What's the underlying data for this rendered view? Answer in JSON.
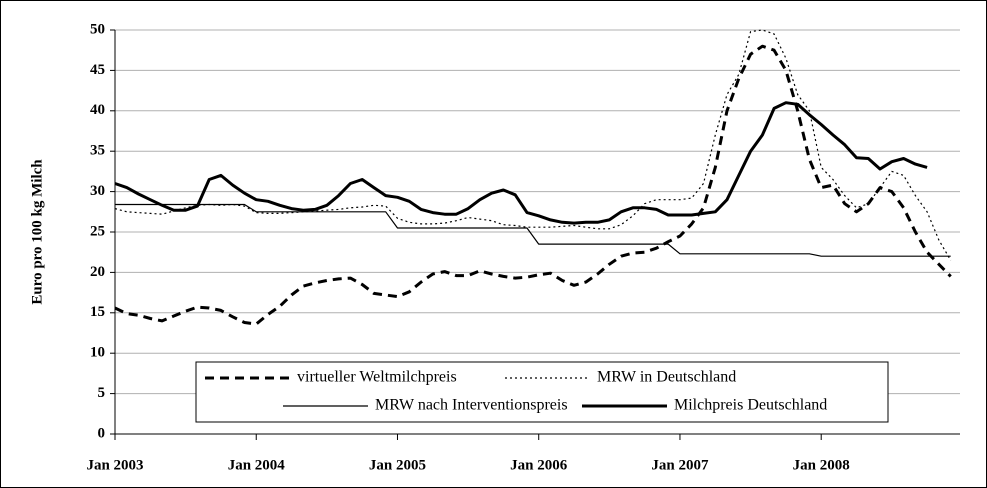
{
  "chart_data": {
    "type": "line",
    "y_label": "Euro pro 100 kg Milch",
    "categories": [
      "Jan 2003",
      null,
      null,
      null,
      null,
      null,
      null,
      null,
      null,
      null,
      null,
      null,
      "Jan 2004",
      null,
      null,
      null,
      null,
      null,
      null,
      null,
      null,
      null,
      null,
      null,
      "Jan 2005",
      null,
      null,
      null,
      null,
      null,
      null,
      null,
      null,
      null,
      null,
      null,
      "Jan 2006",
      null,
      null,
      null,
      null,
      null,
      null,
      null,
      null,
      null,
      null,
      null,
      "Jan 2007",
      null,
      null,
      null,
      null,
      null,
      null,
      null,
      null,
      null,
      null,
      null,
      "Jan 2008",
      null,
      null,
      null,
      null,
      null,
      null,
      null,
      null,
      null,
      null,
      null
    ],
    "ylim": [
      0,
      50
    ],
    "yticks": [
      0,
      5,
      10,
      15,
      20,
      25,
      30,
      35,
      40,
      45,
      50
    ],
    "grid": true,
    "series": [
      {
        "name": "virtueller Weltmilchpreis",
        "color": "#000000",
        "dash": "dashed",
        "weight": "thick",
        "values": [
          15.6,
          14.9,
          14.7,
          14.3,
          14.0,
          14.6,
          15.2,
          15.7,
          15.6,
          15.3,
          14.5,
          13.8,
          13.6,
          14.8,
          15.8,
          17.2,
          18.3,
          18.7,
          19.0,
          19.2,
          19.3,
          18.5,
          17.4,
          17.2,
          17.0,
          17.6,
          18.8,
          19.8,
          20.1,
          19.6,
          19.6,
          20.2,
          19.8,
          19.5,
          19.3,
          19.4,
          19.7,
          19.9,
          19.0,
          18.4,
          18.8,
          19.8,
          21.0,
          22.0,
          22.4,
          22.5,
          23.0,
          23.8,
          24.5,
          26.0,
          28.0,
          33.0,
          40.0,
          44.0,
          47.0,
          48.0,
          47.5,
          45.0,
          40.0,
          34.0,
          30.5,
          30.8,
          28.5,
          27.5,
          28.5,
          30.5,
          30.0,
          28.0,
          25.0,
          22.5,
          21.0,
          19.5
        ]
      },
      {
        "name": "MRW in Deutschland",
        "color": "#000000",
        "dash": "dotted",
        "weight": "thin",
        "values": [
          27.9,
          27.5,
          27.4,
          27.3,
          27.2,
          27.6,
          28.0,
          28.3,
          28.4,
          28.3,
          28.4,
          28.2,
          27.4,
          27.3,
          27.3,
          27.4,
          27.5,
          27.6,
          27.7,
          27.8,
          28.0,
          28.1,
          28.3,
          28.2,
          26.7,
          26.2,
          26.0,
          26.0,
          26.1,
          26.4,
          26.8,
          26.6,
          26.4,
          25.9,
          25.8,
          25.6,
          25.6,
          25.6,
          25.7,
          25.8,
          25.6,
          25.4,
          25.4,
          25.9,
          27.0,
          28.5,
          29.0,
          29.0,
          29.0,
          29.2,
          31.0,
          37.0,
          42.0,
          44.5,
          49.8,
          50.0,
          49.5,
          46.5,
          42.0,
          40.0,
          33.0,
          31.5,
          29.5,
          28.0,
          28.5,
          30.5,
          32.5,
          32.0,
          29.5,
          27.5,
          24.0,
          21.5
        ]
      },
      {
        "name": "MRW nach Interventionspreis",
        "color": "#000000",
        "dash": "solid",
        "weight": "thin",
        "values": [
          28.4,
          28.4,
          28.4,
          28.4,
          28.4,
          28.4,
          28.4,
          28.4,
          28.4,
          28.4,
          28.4,
          28.4,
          27.5,
          27.5,
          27.5,
          27.5,
          27.5,
          27.5,
          27.5,
          27.5,
          27.5,
          27.5,
          27.5,
          27.5,
          25.5,
          25.5,
          25.5,
          25.5,
          25.5,
          25.5,
          25.5,
          25.5,
          25.5,
          25.5,
          25.5,
          25.5,
          23.5,
          23.5,
          23.5,
          23.5,
          23.5,
          23.5,
          23.5,
          23.5,
          23.5,
          23.5,
          23.5,
          23.5,
          22.3,
          22.3,
          22.3,
          22.3,
          22.3,
          22.3,
          22.3,
          22.3,
          22.3,
          22.3,
          22.3,
          22.3,
          22.0,
          22.0,
          22.0,
          22.0,
          22.0,
          22.0,
          22.0,
          22.0,
          22.0,
          22.0,
          22.0,
          22.0
        ]
      },
      {
        "name": "Milchpreis Deutschland",
        "color": "#000000",
        "dash": "solid",
        "weight": "thick",
        "values": [
          31.0,
          30.5,
          29.7,
          29.0,
          28.3,
          27.7,
          27.7,
          28.2,
          31.5,
          32.0,
          30.8,
          29.8,
          29.0,
          28.8,
          28.3,
          27.9,
          27.7,
          27.8,
          28.3,
          29.5,
          31.0,
          31.5,
          30.5,
          29.5,
          29.3,
          28.8,
          27.8,
          27.4,
          27.2,
          27.2,
          27.9,
          29.0,
          29.8,
          30.2,
          29.6,
          27.4,
          27.0,
          26.5,
          26.2,
          26.1,
          26.2,
          26.2,
          26.5,
          27.5,
          28.0,
          28.0,
          27.8,
          27.1,
          27.1,
          27.1,
          27.3,
          27.5,
          29.0,
          32.0,
          35.0,
          37.0,
          40.3,
          41.0,
          40.8,
          39.5,
          38.3,
          37.0,
          35.8,
          34.2,
          34.1,
          32.8,
          33.7,
          34.1,
          33.4,
          33.0,
          null,
          null
        ]
      }
    ]
  }
}
